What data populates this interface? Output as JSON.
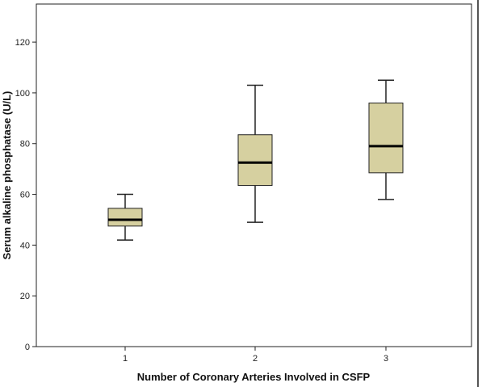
{
  "chart_data": {
    "type": "boxplot",
    "xlabel": "Number of Coronary Arteries Involved in CSFP",
    "ylabel": "Serum alkaline phosphatase (U/L)",
    "ylim": [
      0,
      135
    ],
    "yticks": [
      0,
      20,
      40,
      60,
      80,
      100,
      120
    ],
    "categories": [
      "1",
      "2",
      "3"
    ],
    "boxes": [
      {
        "category": "1",
        "min": 42,
        "q1": 47.5,
        "median": 50,
        "q3": 54.5,
        "max": 60
      },
      {
        "category": "2",
        "min": 49,
        "q1": 63.5,
        "median": 72.5,
        "q3": 83.5,
        "max": 103
      },
      {
        "category": "3",
        "min": 58,
        "q1": 68.5,
        "median": 79,
        "q3": 96,
        "max": 105
      }
    ],
    "grid": false,
    "colors": {
      "box_fill": "#d6d0a0",
      "box_stroke": "#222222",
      "median": "#000000",
      "axis": "#222222"
    }
  }
}
